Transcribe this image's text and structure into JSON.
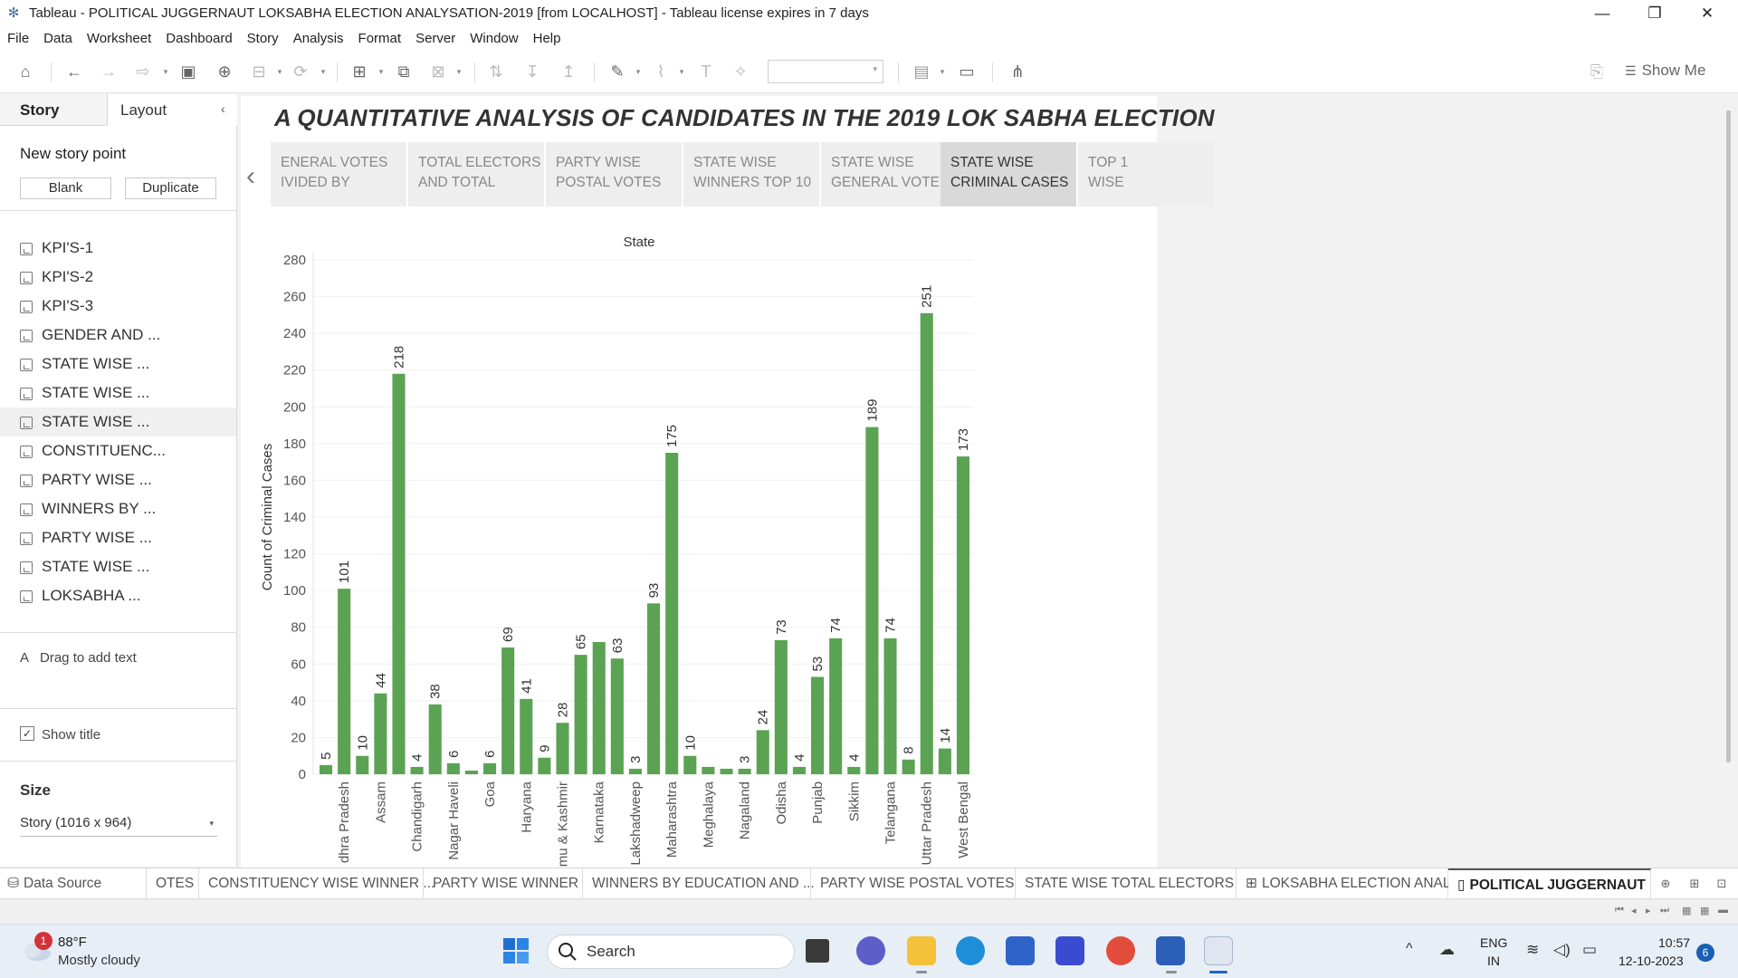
{
  "window": {
    "title": "Tableau - POLITICAL JUGGERNAUT LOKSABHA ELECTION ANALYSATION-2019 [from LOCALHOST] - Tableau license expires in 7 days"
  },
  "menu": [
    "File",
    "Data",
    "Worksheet",
    "Dashboard",
    "Story",
    "Analysis",
    "Format",
    "Server",
    "Window",
    "Help"
  ],
  "toolbar": {
    "show_me": "Show Me"
  },
  "left_panel": {
    "tab_story": "Story",
    "tab_layout": "Layout",
    "new_story_point": "New story point",
    "blank_btn": "Blank",
    "duplicate_btn": "Duplicate",
    "story_points": [
      "KPI'S-1",
      "KPI'S-2",
      "KPI'S-3",
      "GENDER AND ...",
      "STATE WISE ...",
      "STATE WISE ...",
      "STATE WISE ...",
      "CONSTITUENC...",
      "PARTY WISE ...",
      "WINNERS BY ...",
      "PARTY WISE ...",
      "STATE WISE ...",
      "LOKSABHA ..."
    ],
    "drag_text": "Drag to add text",
    "show_title": "Show title",
    "size_label": "Size",
    "size_value": "Story (1016 x 964)"
  },
  "story": {
    "title": "A QUANTITATIVE ANALYSIS OF CANDIDATES IN THE 2019 LOK SABHA ELECTION",
    "nav_points": [
      "ENERAL VOTES\nIVIDED BY",
      "TOTAL ELECTORS\nAND TOTAL",
      "PARTY WISE\nPOSTAL VOTES",
      "STATE WISE\nWINNERS TOP 10",
      "STATE WISE\nGENERAL VOTE",
      "STATE WISE\nCRIMINAL CASES",
      "TOP 1\nWISE"
    ]
  },
  "chart_data": {
    "type": "bar",
    "title": "State",
    "ylabel": "Count of Criminal Cases",
    "ylim": [
      0,
      280
    ],
    "yticks": [
      0,
      20,
      40,
      60,
      80,
      100,
      120,
      140,
      160,
      180,
      200,
      220,
      240,
      260,
      280
    ],
    "bar_color": "#5aa352",
    "categories": [
      "",
      "dhra Pradesh",
      "",
      "Assam",
      "",
      "Chandigarh",
      "",
      "Nagar Haveli",
      "",
      "Goa",
      "",
      "Haryana",
      "",
      "mu & Kashmir",
      "",
      "Karnataka",
      "",
      "Lakshadweep",
      "",
      "Maharashtra",
      "",
      "Meghalaya",
      "",
      "Nagaland",
      "",
      "Odisha",
      "",
      "Punjab",
      "",
      "Sikkim",
      "",
      "Telangana",
      "",
      "Uttar Pradesh",
      "",
      "West Bengal"
    ],
    "values": [
      5,
      101,
      10,
      44,
      218,
      4,
      38,
      6,
      2,
      6,
      69,
      41,
      9,
      28,
      65,
      72,
      63,
      3,
      93,
      175,
      10,
      4,
      3,
      3,
      24,
      73,
      4,
      53,
      74,
      4,
      189,
      74,
      8,
      251,
      14,
      173
    ],
    "data_labels": [
      "5",
      "101",
      "10",
      "44",
      "218",
      "4",
      "38",
      "6",
      "",
      "6",
      "69",
      "41",
      "9",
      "28",
      "65",
      "",
      "63",
      "3",
      "93",
      "175",
      "10",
      "",
      "",
      "3",
      "24",
      "73",
      "4",
      "53",
      "74",
      "4",
      "189",
      "74",
      "8",
      "251",
      "14",
      "173"
    ]
  },
  "sheet_tabs": {
    "data_source": "Data Source",
    "tabs": [
      "OTES",
      "CONSTITUENCY WISE WINNER ...",
      "PARTY WISE WINNER",
      "WINNERS BY EDUCATION AND ...",
      "PARTY WISE POSTAL VOTES",
      "STATE WISE TOTAL ELECTORS",
      "LOKSABHA ELECTION ANAL...",
      "POLITICAL JUGGERNAUT"
    ]
  },
  "taskbar": {
    "weather_badge": "1",
    "temperature": "88°F",
    "weather": "Mostly cloudy",
    "search": "Search",
    "lang1": "ENG",
    "lang2": "IN",
    "time": "10:57",
    "date": "12-10-2023",
    "notifications": "6"
  }
}
